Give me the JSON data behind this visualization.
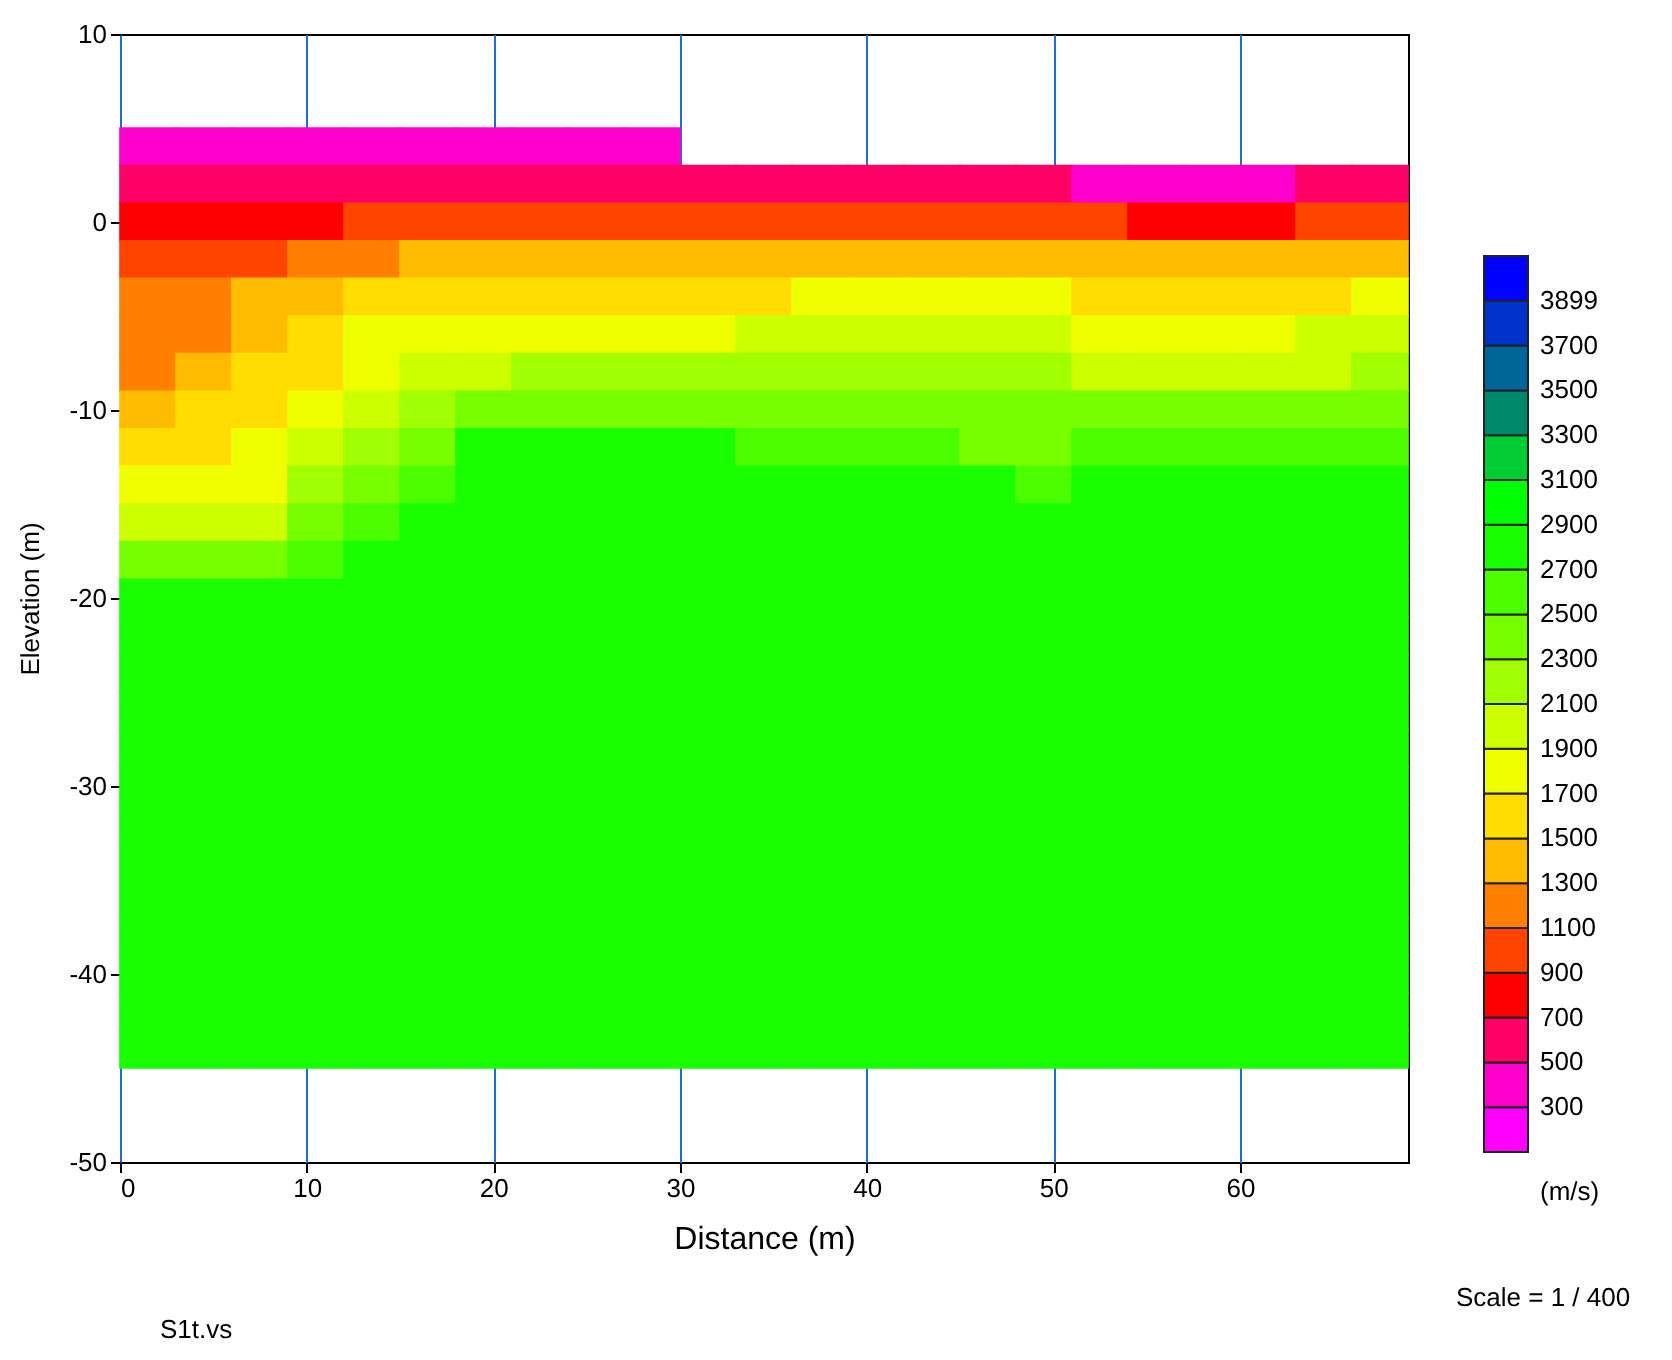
{
  "chart_data": {
    "type": "scatter",
    "xlabel": "Distance (m)",
    "ylabel": "Elevation (m)",
    "clabel": "(m/s)",
    "marker": "square",
    "x": [
      1.5,
      4.5,
      7.5,
      10.5,
      13.5,
      16.5,
      19.5,
      22.5,
      25.5,
      28.5,
      1.5,
      4.5,
      7.5,
      10.5,
      13.5,
      16.5,
      19.5,
      22.5,
      25.5,
      28.5,
      31.5,
      34.5,
      37.5,
      40.5,
      43.5,
      46.5,
      49.5,
      52.5,
      55.5,
      58.5,
      61.5,
      64.5,
      67.5,
      1.5,
      4.5,
      7.5,
      10.5,
      13.5,
      16.5,
      19.5,
      22.5,
      25.5,
      28.5,
      31.5,
      34.5,
      37.5,
      40.5,
      43.5,
      46.5,
      49.5,
      52.5,
      55.5,
      58.5,
      61.5,
      64.5,
      67.5,
      1.5,
      4.5,
      7.5,
      10.5,
      13.5,
      16.5,
      19.5,
      22.5,
      25.5,
      28.5,
      31.5,
      34.5,
      37.5,
      40.5,
      43.5,
      46.5,
      49.5,
      52.5,
      55.5,
      58.5,
      61.5,
      64.5,
      67.5,
      1.5,
      4.5,
      7.5,
      10.5,
      13.5,
      16.5,
      19.5,
      22.5,
      25.5,
      28.5,
      31.5,
      34.5,
      37.5,
      40.5,
      43.5,
      46.5,
      49.5,
      52.5,
      55.5,
      58.5,
      61.5,
      64.5,
      67.5,
      1.5,
      4.5,
      7.5,
      10.5,
      13.5,
      16.5,
      19.5,
      22.5,
      25.5,
      28.5,
      31.5,
      34.5,
      37.5,
      40.5,
      43.5,
      46.5,
      49.5,
      52.5,
      55.5,
      58.5,
      61.5,
      64.5,
      67.5,
      1.5,
      4.5,
      7.5,
      10.5,
      13.5,
      16.5,
      19.5,
      22.5,
      25.5,
      28.5,
      31.5,
      34.5,
      37.5,
      40.5,
      43.5,
      46.5,
      49.5,
      52.5,
      55.5,
      58.5,
      61.5,
      64.5,
      67.5,
      1.5,
      4.5,
      7.5,
      10.5,
      13.5,
      16.5,
      19.5,
      22.5,
      25.5,
      28.5,
      31.5,
      34.5,
      37.5,
      40.5,
      43.5,
      46.5,
      49.5,
      52.5,
      55.5,
      58.5,
      61.5,
      64.5,
      67.5,
      1.5,
      4.5,
      7.5,
      10.5,
      13.5,
      16.5,
      19.5,
      22.5,
      25.5,
      28.5,
      31.5,
      34.5,
      37.5,
      40.5,
      43.5,
      46.5,
      49.5,
      52.5,
      55.5,
      58.5,
      61.5,
      64.5,
      67.5,
      1.5,
      4.5,
      7.5,
      10.5,
      13.5,
      16.5,
      19.5,
      22.5,
      25.5,
      28.5,
      31.5,
      34.5,
      37.5,
      40.5,
      43.5,
      46.5,
      49.5,
      52.5,
      55.5,
      58.5,
      61.5,
      64.5,
      67.5,
      1.5,
      4.5,
      7.5,
      10.5,
      13.5,
      16.5,
      19.5,
      22.5,
      25.5,
      28.5,
      31.5,
      34.5,
      37.5,
      40.5,
      43.5,
      46.5,
      49.5,
      52.5,
      55.5,
      58.5,
      61.5,
      64.5,
      67.5,
      1.5,
      4.5,
      7.5,
      10.5,
      13.5,
      16.5,
      19.5,
      22.5,
      25.5,
      28.5,
      31.5,
      34.5,
      37.5,
      40.5,
      43.5,
      46.5,
      49.5,
      52.5,
      55.5,
      58.5,
      61.5,
      64.5,
      67.5,
      1.5,
      4.5,
      7.5,
      10.5,
      13.5,
      16.5,
      19.5,
      22.5,
      25.5,
      28.5,
      31.5,
      34.5,
      37.5,
      40.5,
      43.5,
      46.5,
      49.5,
      52.5,
      55.5,
      58.5,
      61.5,
      64.5,
      67.5,
      1.5,
      4.5,
      7.5,
      10.5,
      13.5,
      16.5,
      19.5,
      22.5,
      25.5,
      28.5,
      31.5,
      34.5,
      37.5,
      40.5,
      43.5,
      46.5,
      49.5,
      52.5,
      55.5,
      58.5,
      61.5,
      64.5,
      67.5,
      1.5,
      4.5,
      7.5,
      10.5,
      13.5,
      16.5,
      19.5,
      22.5,
      25.5,
      28.5,
      31.5,
      34.5,
      37.5,
      40.5,
      43.5,
      46.5,
      49.5,
      52.5,
      55.5,
      58.5,
      61.5,
      64.5,
      67.5,
      1.5,
      4.5,
      7.5,
      10.5,
      13.5,
      16.5,
      19.5,
      22.5,
      25.5,
      28.5,
      31.5,
      34.5,
      37.5,
      40.5,
      43.5,
      46.5,
      49.5,
      52.5,
      55.5,
      58.5,
      61.5,
      64.5,
      67.5,
      1.5,
      4.5,
      7.5,
      10.5,
      13.5,
      16.5,
      19.5,
      22.5,
      25.5,
      28.5,
      31.5,
      34.5,
      37.5,
      40.5,
      43.5,
      46.5,
      49.5,
      52.5,
      55.5,
      58.5,
      61.5,
      64.5,
      67.5,
      1.5,
      4.5,
      7.5,
      10.5,
      13.5,
      16.5,
      19.5,
      22.5,
      25.5,
      28.5,
      31.5,
      34.5,
      37.5,
      40.5,
      43.5,
      46.5,
      49.5,
      52.5,
      55.5,
      58.5,
      61.5,
      64.5,
      67.5,
      1.5,
      4.5,
      7.5,
      10.5,
      13.5,
      16.5,
      19.5,
      22.5,
      25.5,
      28.5,
      31.5,
      34.5,
      37.5,
      40.5,
      43.5,
      46.5,
      49.5,
      52.5,
      55.5,
      58.5,
      61.5,
      64.5,
      67.5,
      1.5,
      4.5,
      7.5,
      10.5,
      13.5,
      16.5,
      19.5,
      22.5,
      25.5,
      28.5,
      31.5,
      34.5,
      37.5,
      40.5,
      43.5,
      46.5,
      49.5,
      52.5,
      55.5,
      58.5,
      61.5,
      64.5,
      67.5,
      1.5,
      4.5,
      7.5,
      10.5,
      13.5,
      16.5,
      19.5,
      22.5,
      25.5,
      28.5,
      31.5,
      34.5,
      37.5,
      40.5,
      43.5,
      46.5,
      49.5,
      52.5,
      55.5,
      58.5,
      61.5,
      64.5,
      67.5,
      1.5,
      4.5,
      7.5,
      10.5,
      13.5,
      16.5,
      19.5,
      22.5,
      25.5,
      28.5,
      31.5,
      34.5,
      37.5,
      40.5,
      43.5,
      46.5,
      49.5,
      52.5,
      55.5,
      58.5,
      61.5,
      64.5,
      67.5,
      1.5,
      4.5,
      7.5,
      10.5,
      13.5,
      16.5,
      19.5,
      22.5,
      25.5,
      28.5,
      31.5,
      34.5,
      37.5,
      40.5,
      43.5,
      46.5,
      49.5,
      52.5,
      55.5,
      58.5,
      61.5,
      64.5,
      67.5,
      1.5,
      4.5,
      7.5,
      10.5,
      13.5,
      16.5,
      19.5,
      22.5,
      25.5,
      28.5,
      31.5,
      34.5,
      37.5,
      40.5,
      43.5,
      46.5,
      49.5,
      52.5,
      55.5,
      58.5,
      61.5,
      64.5,
      67.5,
      1.5,
      4.5,
      7.5,
      10.5,
      13.5,
      16.5,
      19.5,
      22.5,
      25.5,
      28.5,
      31.5,
      34.5,
      37.5,
      40.5,
      43.5,
      46.5,
      49.5,
      52.5,
      55.5,
      58.5,
      61.5,
      64.5,
      67.5
    ],
    "values": [
      4,
      4,
      4,
      4,
      4,
      4,
      4,
      4,
      4,
      4,
      2,
      2,
      2,
      2,
      2,
      2,
      2,
      2,
      2,
      2,
      2,
      2,
      2,
      2,
      2,
      2,
      2,
      2,
      2,
      2,
      2,
      2,
      2,
      0,
      0,
      0,
      0,
      0,
      0,
      0,
      0,
      0,
      0,
      0,
      0,
      0,
      0,
      0,
      0,
      0,
      0,
      0,
      0,
      0,
      0,
      0,
      -2,
      -2,
      -2,
      -2,
      -2,
      -2,
      -2,
      -2,
      -2,
      -2,
      -2,
      -2,
      -2,
      -2,
      -2,
      -2,
      -2,
      -2,
      -2,
      -2,
      -2,
      -2,
      -2,
      -4,
      -4,
      -4,
      -4,
      -4,
      -4,
      -4,
      -4,
      -4,
      -4,
      -4,
      -4,
      -4,
      -4,
      -4,
      -4,
      -4,
      -4,
      -4,
      -4,
      -4,
      -4,
      -4,
      -6,
      -6,
      -6,
      -6,
      -6,
      -6,
      -6,
      -6,
      -6,
      -6,
      -6,
      -6,
      -6,
      -6,
      -6,
      -6,
      -6,
      -6,
      -6,
      -6,
      -6,
      -6,
      -6,
      -8,
      -8,
      -8,
      -8,
      -8,
      -8,
      -8,
      -8,
      -8,
      -8,
      -8,
      -8,
      -8,
      -8,
      -8,
      -8,
      -8,
      -8,
      -8,
      -8,
      -8,
      -8,
      -8,
      -10,
      -10,
      -10,
      -10,
      -10,
      -10,
      -10,
      -10,
      -10,
      -10,
      -10,
      -10,
      -10,
      -10,
      -10,
      -10,
      -10,
      -10,
      -10,
      -10,
      -10,
      -10,
      -10,
      -12,
      -12,
      -12,
      -12,
      -12,
      -12,
      -12,
      -12,
      -12,
      -12,
      -12,
      -12,
      -12,
      -12,
      -12,
      -12,
      -12,
      -12,
      -12,
      -12,
      -12,
      -12,
      -12,
      -14,
      -14,
      -14,
      -14,
      -14,
      -14,
      -14,
      -14,
      -14,
      -14,
      -14,
      -14,
      -14,
      -14,
      -14,
      -14,
      -14,
      -14,
      -14,
      -14,
      -14,
      -14,
      -14,
      -16,
      -16,
      -16,
      -16,
      -16,
      -16,
      -16,
      -16,
      -16,
      -16,
      -16,
      -16,
      -16,
      -16,
      -16,
      -16,
      -16,
      -16,
      -16,
      -16,
      -16,
      -16,
      -16,
      -18,
      -18,
      -18,
      -18,
      -18,
      -18,
      -18,
      -18,
      -18,
      -18,
      -18,
      -18,
      -18,
      -18,
      -18,
      -18,
      -18,
      -18,
      -18,
      -18,
      -18,
      -18,
      -18,
      -20,
      -20,
      -20,
      -20,
      -20,
      -20,
      -20,
      -20,
      -20,
      -20,
      -20,
      -20,
      -20,
      -20,
      -20,
      -20,
      -20,
      -20,
      -20,
      -20,
      -20,
      -20,
      -20,
      -22,
      -22,
      -22,
      -22,
      -22,
      -22,
      -22,
      -22,
      -22,
      -22,
      -22,
      -22,
      -22,
      -22,
      -22,
      -22,
      -22,
      -22,
      -22,
      -22,
      -22,
      -22,
      -22,
      -24,
      -24,
      -24,
      -24,
      -24,
      -24,
      -24,
      -24,
      -24,
      -24,
      -24,
      -24,
      -24,
      -24,
      -24,
      -24,
      -24,
      -24,
      -24,
      -24,
      -24,
      -24,
      -24,
      -26,
      -26,
      -26,
      -26,
      -26,
      -26,
      -26,
      -26,
      -26,
      -26,
      -26,
      -26,
      -26,
      -26,
      -26,
      -26,
      -26,
      -26,
      -26,
      -26,
      -26,
      -26,
      -26,
      -28,
      -28,
      -28,
      -28,
      -28,
      -28,
      -28,
      -28,
      -28,
      -28,
      -28,
      -28,
      -28,
      -28,
      -28,
      -28,
      -28,
      -28,
      -28,
      -28,
      -28,
      -28,
      -28,
      -30,
      -30,
      -30,
      -30,
      -30,
      -30,
      -30,
      -30,
      -30,
      -30,
      -30,
      -30,
      -30,
      -30,
      -30,
      -30,
      -30,
      -30,
      -30,
      -30,
      -30,
      -30,
      -30,
      -32,
      -32,
      -32,
      -32,
      -32,
      -32,
      -32,
      -32,
      -32,
      -32,
      -32,
      -32,
      -32,
      -32,
      -32,
      -32,
      -32,
      -32,
      -32,
      -32,
      -32,
      -32,
      -32,
      -34,
      -34,
      -34,
      -34,
      -34,
      -34,
      -34,
      -34,
      -34,
      -34,
      -34,
      -34,
      -34,
      -34,
      -34,
      -34,
      -34,
      -34,
      -34,
      -34,
      -34,
      -34,
      -34,
      -36,
      -36,
      -36,
      -36,
      -36,
      -36,
      -36,
      -36,
      -36,
      -36,
      -36,
      -36,
      -36,
      -36,
      -36,
      -36,
      -36,
      -36,
      -36,
      -36,
      -36,
      -36,
      -36,
      -38,
      -38,
      -38,
      -38,
      -38,
      -38,
      -38,
      -38,
      -38,
      -38,
      -38,
      -38,
      -38,
      -38,
      -38,
      -38,
      -38,
      -38,
      -38,
      -38,
      -38,
      -38,
      -38,
      -40,
      -40,
      -40,
      -40,
      -40,
      -40,
      -40,
      -40,
      -40,
      -40,
      -40,
      -40,
      -40,
      -40,
      -40,
      -40,
      -40,
      -40,
      -40,
      -40,
      -40,
      -40,
      -40,
      -42,
      -42,
      -42,
      -42,
      -42,
      -42,
      -42,
      -42,
      -42,
      -42,
      -42,
      -42,
      -42,
      -42,
      -42,
      -42,
      -42,
      -42,
      -42,
      -42,
      -42,
      -42,
      -42,
      -44,
      -44,
      -44,
      -44,
      -44,
      -44,
      -44,
      -44,
      -44,
      -44,
      -44,
      -44,
      -44,
      -44,
      -44,
      -44,
      -44,
      -44,
      -44,
      -44,
      -44,
      -44,
      -44
    ],
    "cvalues": [
      400,
      400,
      400,
      400,
      400,
      400,
      400,
      400,
      400,
      400,
      600,
      600,
      600,
      600,
      600,
      600,
      600,
      600,
      600,
      600,
      600,
      600,
      600,
      600,
      600,
      600,
      600,
      400,
      400,
      400,
      400,
      600,
      600,
      800,
      800,
      800,
      800,
      1000,
      1000,
      1000,
      1000,
      1000,
      1000,
      1000,
      1000,
      1000,
      1000,
      1000,
      1000,
      1000,
      1000,
      800,
      800,
      800,
      1000,
      1000,
      1000,
      1000,
      1000,
      1200,
      1200,
      1400,
      1400,
      1400,
      1400,
      1400,
      1400,
      1400,
      1400,
      1400,
      1400,
      1400,
      1400,
      1400,
      1400,
      1400,
      1400,
      1400,
      1400,
      1200,
      1200,
      1400,
      1400,
      1600,
      1600,
      1600,
      1600,
      1600,
      1600,
      1600,
      1600,
      1800,
      1800,
      1800,
      1800,
      1800,
      1600,
      1600,
      1600,
      1600,
      1600,
      1800,
      1200,
      1200,
      1400,
      1600,
      1800,
      1800,
      1800,
      1800,
      1800,
      1800,
      1800,
      2000,
      2000,
      2000,
      2000,
      2000,
      2000,
      1800,
      1800,
      1800,
      1800,
      2000,
      2000,
      1200,
      1400,
      1600,
      1600,
      1800,
      2000,
      2000,
      2200,
      2200,
      2200,
      2200,
      2200,
      2200,
      2200,
      2200,
      2200,
      2200,
      2000,
      2000,
      2000,
      2000,
      2000,
      2200,
      1400,
      1600,
      1600,
      1800,
      2000,
      2200,
      2400,
      2400,
      2400,
      2400,
      2400,
      2400,
      2400,
      2400,
      2400,
      2400,
      2400,
      2400,
      2400,
      2400,
      2400,
      2400,
      2400,
      1600,
      1600,
      1800,
      2000,
      2200,
      2400,
      2800,
      2800,
      2800,
      2800,
      2800,
      2600,
      2600,
      2600,
      2600,
      2400,
      2400,
      2600,
      2600,
      2600,
      2600,
      2600,
      2600,
      1800,
      1800,
      1800,
      2200,
      2400,
      2600,
      2800,
      2800,
      2800,
      2800,
      2800,
      2800,
      2800,
      2800,
      2800,
      2800,
      2600,
      2800,
      2800,
      2800,
      2800,
      2800,
      2800,
      2000,
      2000,
      2000,
      2400,
      2600,
      2800,
      2800,
      2800,
      2800,
      2800,
      2800,
      2800,
      2800,
      2800,
      2800,
      2800,
      2800,
      2800,
      2800,
      2800,
      2800,
      2800,
      2800,
      2400,
      2400,
      2400,
      2600,
      2800,
      2800,
      2800,
      2800,
      2800,
      2800,
      2800,
      2800,
      2800,
      2800,
      2800,
      2800,
      2800,
      2800,
      2800,
      2800,
      2800,
      2800,
      2800,
      2800,
      2800,
      2800,
      2800,
      2800,
      2800,
      2800,
      2800,
      2800,
      2800,
      2800,
      2800,
      2800,
      2800,
      2800,
      2800,
      2800,
      2800,
      2800,
      2800,
      2800,
      2800,
      2800,
      2800,
      2800,
      2800,
      2800,
      2800,
      2800,
      2800,
      2800,
      2800,
      2800,
      2800,
      2800,
      2800,
      2800,
      2800,
      2800,
      2800,
      2800,
      2800,
      2800,
      2800,
      2800,
      2800,
      2800,
      2800,
      2800,
      2800,
      2800,
      2800,
      2800,
      2800,
      2800,
      2800,
      2800,
      2800,
      2800,
      2800,
      2800,
      2800,
      2800,
      2800,
      2800,
      2800,
      2800,
      2800,
      2800,
      2800,
      2800,
      2800,
      2800,
      2800,
      2800,
      2800,
      2800,
      2800,
      2800,
      2800,
      2800,
      2800,
      2800,
      2800,
      2800,
      2800,
      2800,
      2800,
      2800,
      2800,
      2800,
      2800,
      2800,
      2800,
      2800,
      2800,
      2800,
      2800,
      2800,
      2800,
      2800,
      2800,
      2800,
      2800,
      2800,
      2800,
      2800,
      2800,
      2800,
      2800,
      2800,
      2800,
      2800,
      2800,
      2800,
      2800,
      2800,
      2800,
      2800,
      2800,
      2800,
      2800,
      2800,
      2800,
      2800,
      2800,
      2800,
      2800,
      2800,
      2800,
      2800,
      2800,
      2800,
      2800,
      2800,
      2800,
      2800,
      2800,
      2800,
      2800,
      2800,
      2800,
      2800,
      2800,
      2800,
      2800,
      2800,
      2800,
      2800,
      2800,
      2800,
      2800,
      2800,
      2800,
      2800,
      2800,
      2800,
      2800,
      2800,
      2800,
      2800,
      2800,
      2800,
      2800,
      2800,
      2800,
      2800,
      2800,
      2800,
      2800,
      2800,
      2800,
      2800,
      2800,
      2800,
      2800,
      2800,
      2800,
      2800,
      2800,
      2800,
      2800,
      2800,
      2800,
      2800,
      2800,
      2800,
      2800,
      2800,
      2800,
      2800,
      2800,
      2800,
      2800,
      2800,
      2800,
      2800,
      2800,
      2800,
      2800,
      2800,
      2800,
      2800,
      2800,
      2800,
      2800,
      2800,
      2800,
      2800,
      2800,
      2800,
      2800,
      2800,
      2800,
      2800,
      2800,
      2800,
      2800,
      2800,
      2800,
      2800,
      2800,
      2800,
      2800,
      2800,
      2800,
      2800,
      2800,
      2800,
      2800,
      2800,
      2800,
      2800,
      2800,
      2800,
      2800,
      2800,
      2800,
      2800,
      2800,
      2800,
      2800,
      2800,
      2800,
      2800,
      2800,
      2800,
      2800,
      2800,
      2800,
      2800,
      2800,
      2800,
      2800,
      2800,
      2800,
      2800,
      2800,
      2800,
      2800,
      2800,
      2800,
      2800,
      2800,
      2800,
      2800,
      2800,
      2800,
      2800,
      2800,
      2800,
      2800,
      2800,
      2800,
      2800,
      2800,
      2800,
      2800,
      2800,
      2800,
      2800,
      2800,
      2800,
      2800,
      2800,
      2800,
      2800,
      2800,
      2800,
      2800,
      2800,
      2800,
      2800,
      2800,
      2800,
      2800,
      2800,
      2800,
      2800
    ],
    "clim": [
      100,
      4100
    ],
    "cticks": [
      300,
      500,
      700,
      900,
      1100,
      1300,
      1500,
      1700,
      1900,
      2100,
      2300,
      2500,
      2700,
      2900,
      3100,
      3300,
      3500,
      3700,
      3899
    ],
    "xlim": [
      0,
      69
    ],
    "ylim": [
      -50,
      10
    ],
    "xticks": [
      0,
      10,
      20,
      30,
      40,
      50,
      60
    ],
    "yticks": [
      -50,
      -40,
      -30,
      -20,
      -10,
      0,
      10
    ],
    "grid": "x",
    "annotations": [
      "S1t.vs",
      "Scale = 1 / 400"
    ]
  }
}
